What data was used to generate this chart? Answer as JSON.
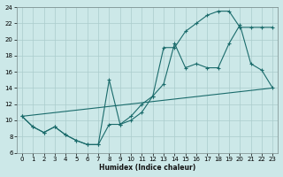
{
  "background_color": "#cce8e8",
  "grid_color": "#aacccc",
  "line_color": "#1a6b6b",
  "xlim_min": -0.5,
  "xlim_max": 23.5,
  "ylim_min": 6,
  "ylim_max": 24,
  "xticks": [
    0,
    1,
    2,
    3,
    4,
    5,
    6,
    7,
    8,
    9,
    10,
    11,
    12,
    13,
    14,
    15,
    16,
    17,
    18,
    19,
    20,
    21,
    22,
    23
  ],
  "yticks": [
    6,
    8,
    10,
    12,
    14,
    16,
    18,
    20,
    22,
    24
  ],
  "xlabel": "Humidex (Indice chaleur)",
  "curve1_x": [
    0,
    1,
    2,
    3,
    4,
    5,
    6,
    7,
    8,
    9,
    10,
    11,
    12,
    13,
    14,
    15,
    16,
    17,
    18,
    19,
    20,
    21,
    22,
    23
  ],
  "curve1_y": [
    10.5,
    9.2,
    8.5,
    9.2,
    8.2,
    7.5,
    7.0,
    7.0,
    15.0,
    9.5,
    10.0,
    11.0,
    13.0,
    19.0,
    19.0,
    21.0,
    22.0,
    23.0,
    23.5,
    23.5,
    21.5,
    21.5,
    21.5,
    21.5
  ],
  "curve2_x": [
    0,
    1,
    2,
    3,
    4,
    5,
    6,
    7,
    8,
    9,
    10,
    11,
    12,
    13,
    14,
    15,
    16,
    17,
    18,
    19,
    20,
    21,
    22,
    23
  ],
  "curve2_y": [
    10.5,
    9.2,
    8.5,
    9.2,
    8.2,
    7.5,
    7.0,
    7.0,
    9.5,
    9.5,
    10.5,
    12.0,
    13.0,
    14.5,
    19.5,
    16.5,
    17.0,
    16.5,
    16.5,
    19.5,
    21.8,
    17.0,
    16.2,
    14.0
  ],
  "curve3_x": [
    0,
    23
  ],
  "curve3_y": [
    10.5,
    14.0
  ]
}
